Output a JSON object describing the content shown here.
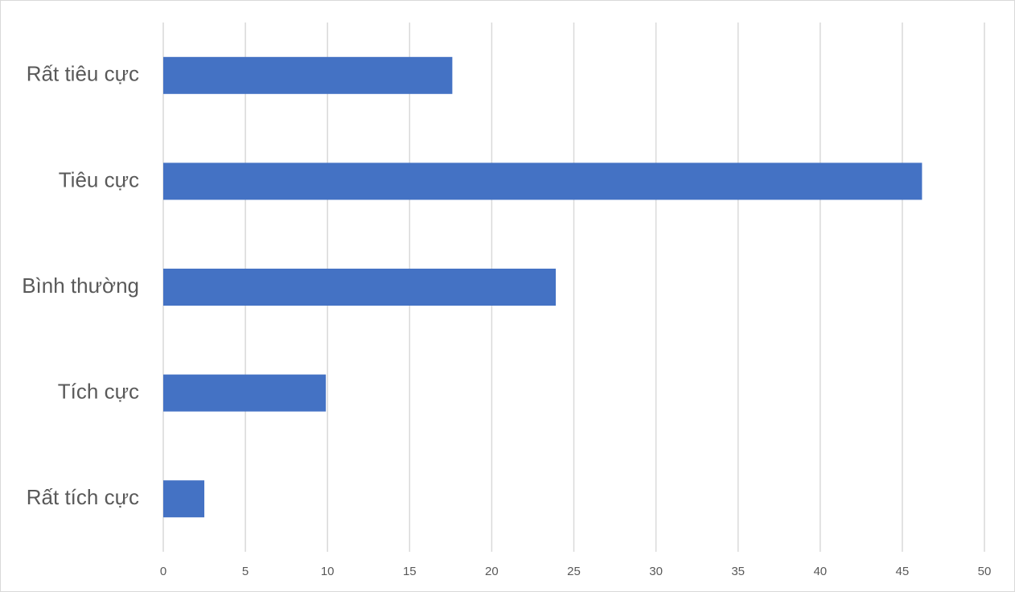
{
  "chart_data": {
    "type": "hbar",
    "categories": [
      "Rất tiêu cực",
      "Tiêu cực",
      "Bình thường",
      "Tích cực",
      "Rất tích cực"
    ],
    "values": [
      17.6,
      46.2,
      23.9,
      9.9,
      2.5
    ],
    "color": "#4472c4",
    "xlim": [
      0,
      50
    ],
    "xticks": [
      0,
      5,
      10,
      15,
      20,
      25,
      30,
      35,
      40,
      45,
      50
    ],
    "grid": true
  }
}
